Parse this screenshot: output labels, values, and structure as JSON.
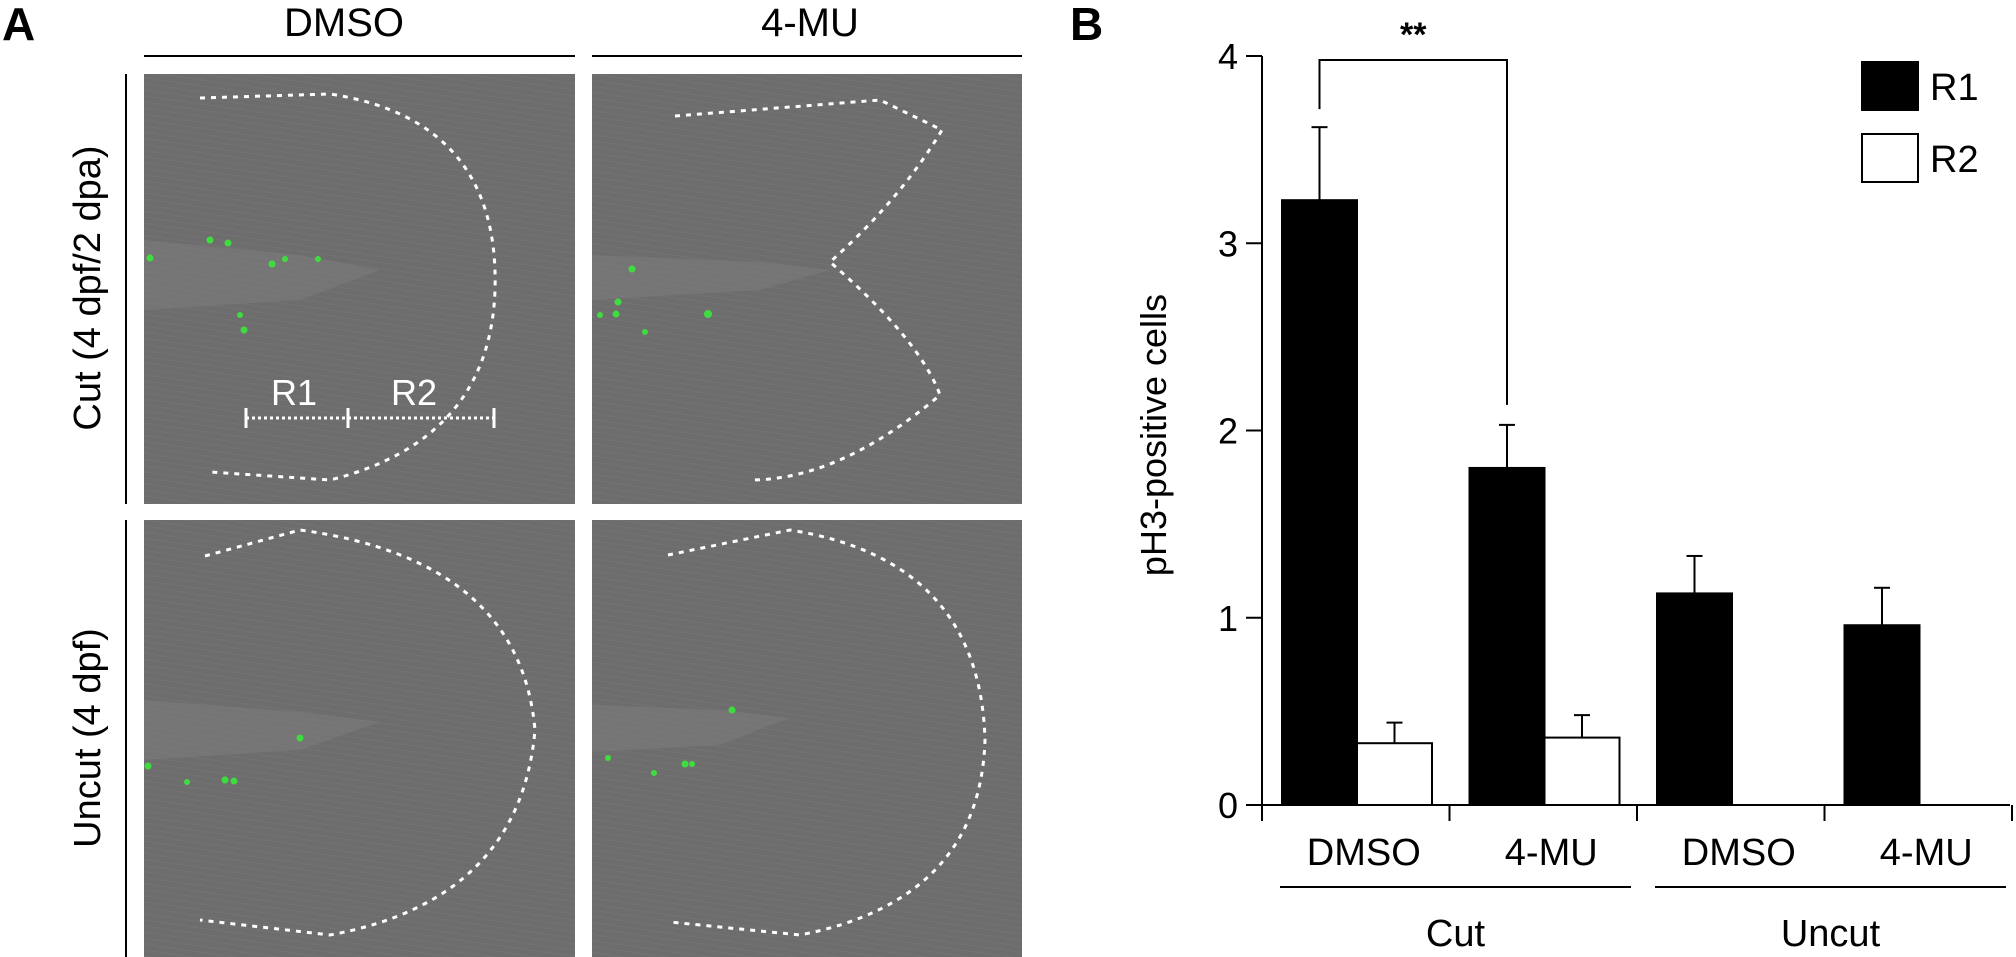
{
  "panel_a": {
    "label": "A",
    "columns": [
      "DMSO",
      "4-MU"
    ],
    "rows": [
      "Cut (4 dpf/2 dpa)",
      "Uncut (4 dpf)"
    ],
    "regions": [
      "R1",
      "R2"
    ]
  },
  "panel_b": {
    "label": "B"
  },
  "chart_data": {
    "type": "bar",
    "ylabel": "pH3-positive cells",
    "ylim": [
      0,
      4
    ],
    "yticks": [
      "0",
      "1",
      "2",
      "3",
      "4"
    ],
    "categories": [
      "DMSO",
      "4-MU",
      "DMSO",
      "4-MU"
    ],
    "groups": [
      "Cut",
      "Uncut"
    ],
    "series": [
      {
        "name": "R1",
        "color": "#000000",
        "values": [
          3.23,
          1.8,
          1.13,
          0.96
        ],
        "errors": [
          0.39,
          0.23,
          0.2,
          0.2
        ]
      },
      {
        "name": "R2",
        "color": "#ffffff",
        "values": [
          0.33,
          0.36,
          null,
          null
        ],
        "errors": [
          0.11,
          0.12,
          null,
          null
        ]
      }
    ],
    "significance": {
      "label": "**",
      "between": [
        "Cut DMSO R1",
        "Cut 4-MU R1"
      ]
    },
    "legend_position": "top-right"
  }
}
